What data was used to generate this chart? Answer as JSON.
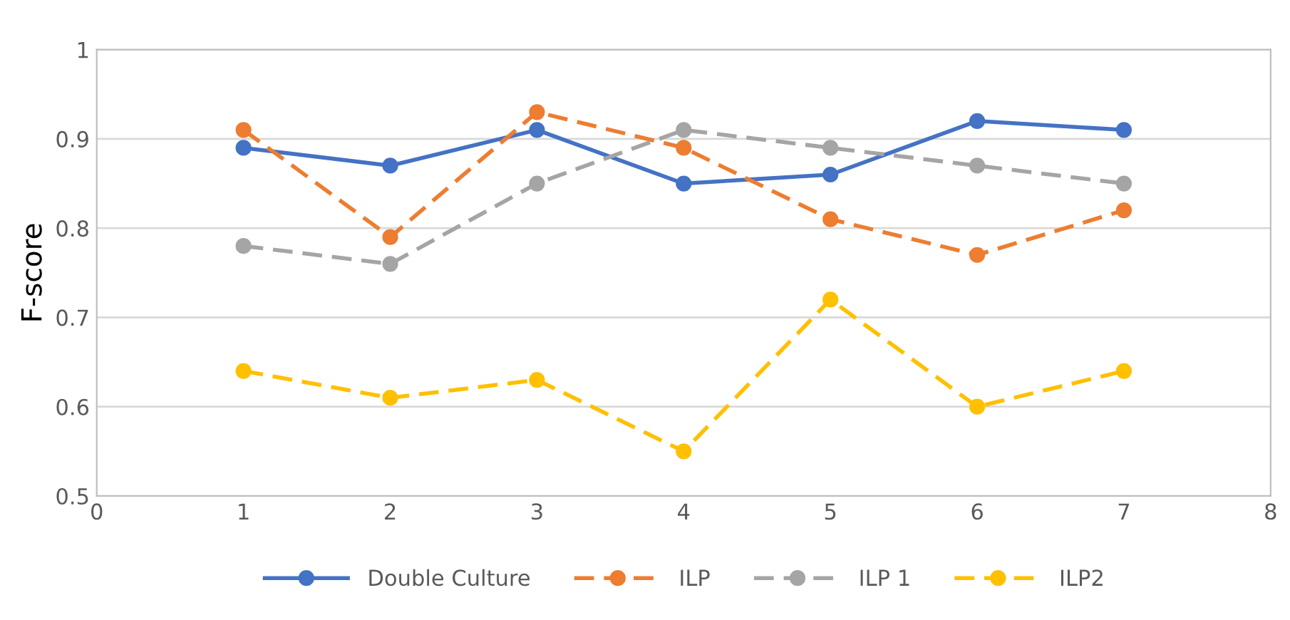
{
  "chart_data": {
    "type": "line",
    "ylabel": "F-score",
    "x": [
      1,
      2,
      3,
      4,
      5,
      6,
      7
    ],
    "series": [
      {
        "name": "Double Culture",
        "color": "#4472c4",
        "line_style": "solid",
        "values": [
          0.89,
          0.87,
          0.91,
          0.85,
          0.86,
          0.92,
          0.91
        ]
      },
      {
        "name": "ILP",
        "color": "#ed7d31",
        "line_style": "dashed",
        "values": [
          0.91,
          0.79,
          0.93,
          0.89,
          0.81,
          0.77,
          0.82
        ]
      },
      {
        "name": "ILP 1",
        "color": "#a5a5a5",
        "line_style": "dashed",
        "values": [
          0.78,
          0.76,
          0.85,
          0.91,
          0.89,
          0.87,
          0.85
        ]
      },
      {
        "name": "ILP2",
        "color": "#ffc000",
        "line_style": "dashed",
        "values": [
          0.64,
          0.61,
          0.63,
          0.55,
          0.72,
          0.6,
          0.64
        ]
      }
    ],
    "xlim": [
      0,
      8
    ],
    "xticks": [
      0,
      1,
      2,
      3,
      4,
      5,
      6,
      7,
      8
    ],
    "ylim": [
      0.5,
      1
    ],
    "yticks": [
      0.5,
      0.6,
      0.7,
      0.8,
      0.9,
      1
    ],
    "grid": "y",
    "legend": "bottom",
    "marker": "circle"
  }
}
